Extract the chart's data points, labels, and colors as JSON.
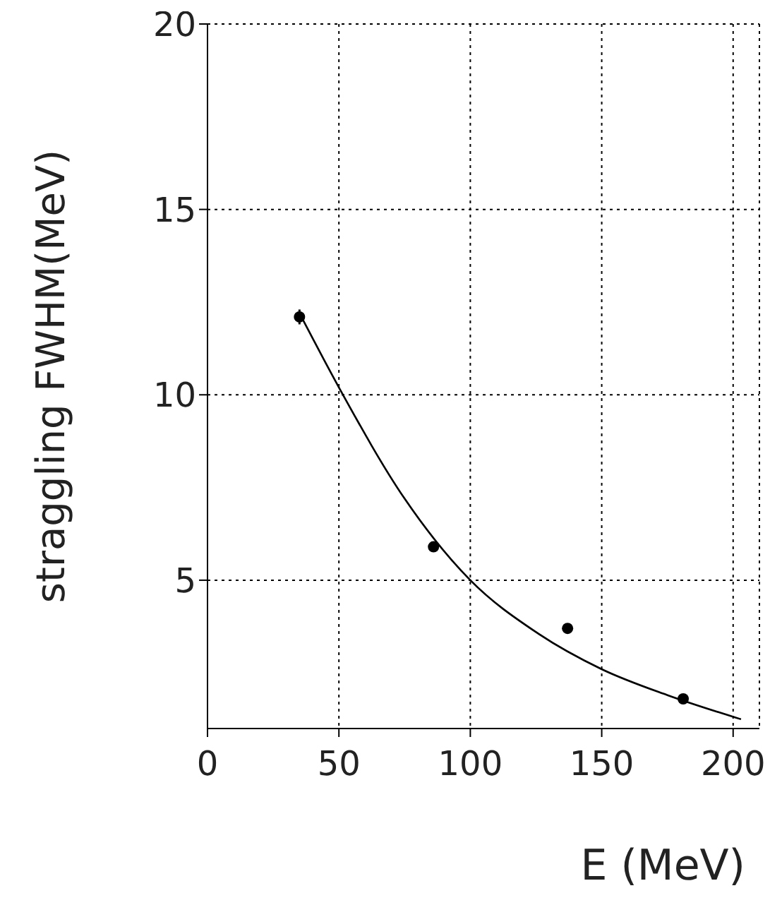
{
  "chart_data": {
    "type": "scatter",
    "xlabel": "E (MeV)",
    "ylabel": "straggling FWHM(MeV)",
    "xlim": [
      0,
      210
    ],
    "xticks": [
      0,
      50,
      100,
      150,
      200
    ],
    "ylim": [
      1,
      20
    ],
    "yticks": [
      5,
      10,
      15,
      20
    ],
    "grid": true,
    "marker": "circle",
    "series": [
      {
        "color": "#000000",
        "x": [
          35,
          86,
          137,
          181
        ],
        "values": [
          12.1,
          5.9,
          3.7,
          1.8
        ],
        "errors": [
          0.2,
          null,
          null,
          null
        ]
      },
      {
        "type": "line",
        "color": "#000000",
        "line_style": "solid",
        "marker": "none",
        "x": [
          35,
          50,
          75,
          100,
          125,
          150,
          175,
          203
        ],
        "values": [
          12.2,
          10.2,
          7.2,
          5.0,
          3.6,
          2.6,
          1.9,
          1.25
        ]
      }
    ]
  }
}
